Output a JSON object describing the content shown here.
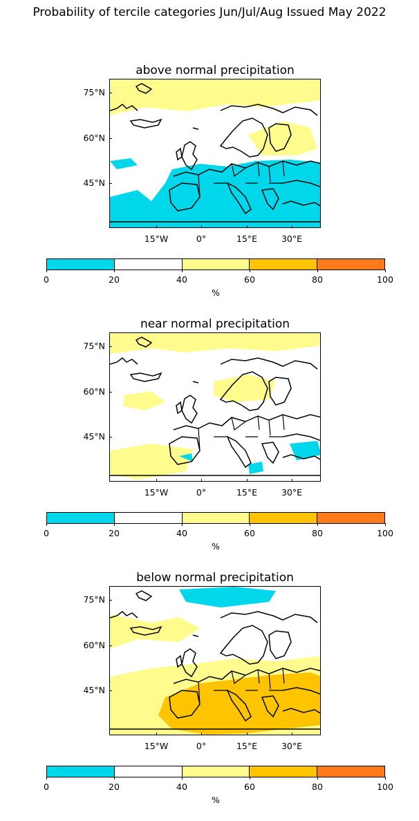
{
  "title": "Probability of tercile categories Jun/Jul/Aug Issued May 2022",
  "colorbar": {
    "ticks": [
      "0",
      "20",
      "40",
      "60",
      "80",
      "100"
    ],
    "unit": "%",
    "colors": [
      "#00d7ea",
      "#ffffff",
      "#fffb8c",
      "#ffc400",
      "#ff7a1a"
    ]
  },
  "axes": {
    "y_ticks": [
      "75°N",
      "60°N",
      "45°N"
    ],
    "x_ticks": [
      "15°W",
      "0°",
      "15°E",
      "30°E"
    ]
  },
  "panels": [
    {
      "title": "above normal precipitation",
      "dominant_category": "0-20 (south), 40-60 (north)"
    },
    {
      "title": "near normal precipitation",
      "dominant_category": "20-40"
    },
    {
      "title": "below normal precipitation",
      "dominant_category": "60-80 (south), 40-60"
    }
  ]
}
